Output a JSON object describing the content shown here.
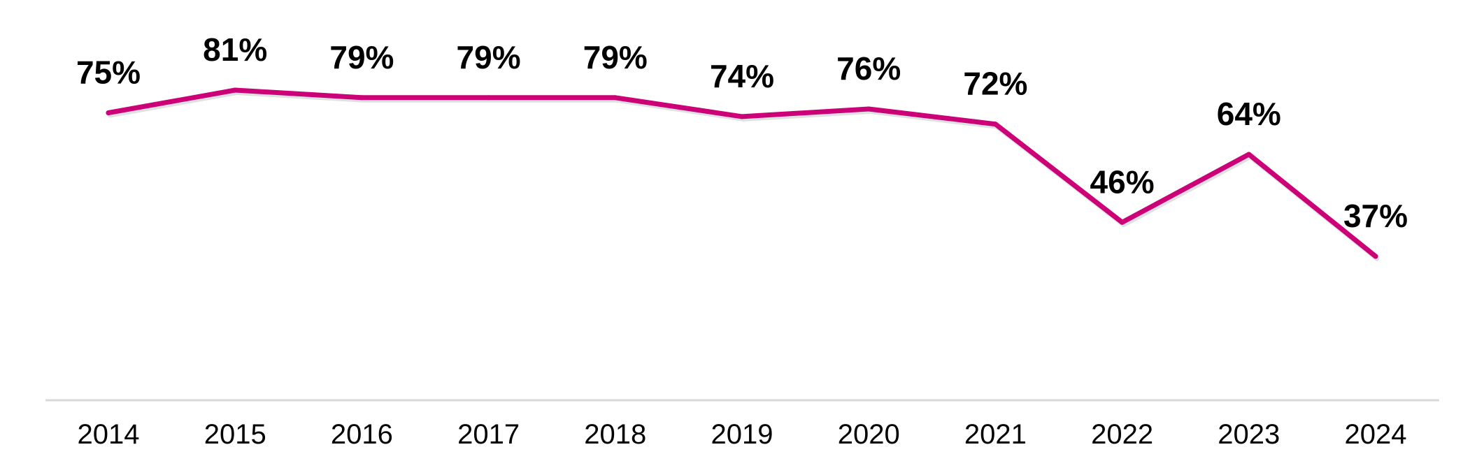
{
  "chart_data": {
    "type": "line",
    "categories": [
      "2014",
      "2015",
      "2016",
      "2017",
      "2018",
      "2019",
      "2020",
      "2021",
      "2022",
      "2023",
      "2024"
    ],
    "series": [
      {
        "values": [
          75,
          81,
          79,
          79,
          79,
          74,
          76,
          72,
          46,
          64,
          37
        ],
        "labels": [
          "75%",
          "81%",
          "79%",
          "79%",
          "79%",
          "74%",
          "76%",
          "72%",
          "46%",
          "64%",
          "37%"
        ],
        "color": "#cc0077"
      }
    ],
    "title": "",
    "xlabel": "",
    "ylabel": "",
    "ylim": [
      0,
      100
    ],
    "grid": false,
    "legend": "none",
    "axis_line_color": "#d9d9d9"
  }
}
